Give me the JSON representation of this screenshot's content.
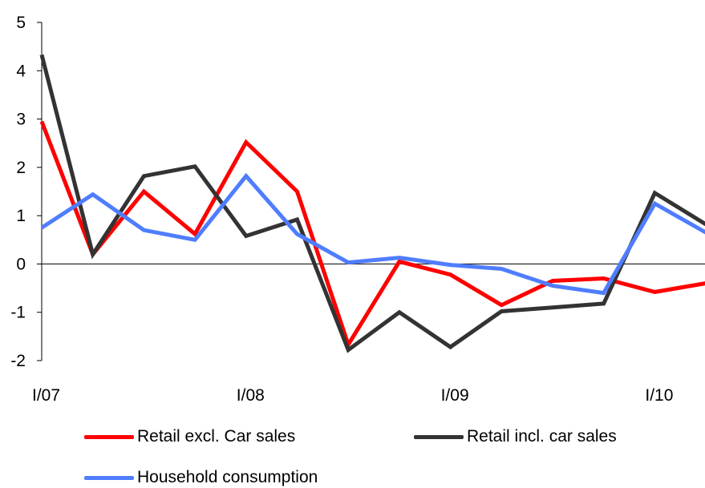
{
  "chart_data": {
    "type": "line",
    "title": "",
    "xlabel": "",
    "ylabel": "",
    "x": [
      "I/07",
      "II/07",
      "III/07",
      "IV/07",
      "I/08",
      "II/08",
      "III/08",
      "IV/08",
      "I/09",
      "II/09",
      "III/09",
      "IV/09",
      "I/10",
      "II/10"
    ],
    "x_tick_labels": [
      "I/07",
      "I/08",
      "I/09",
      "I/10"
    ],
    "y_ticks": [
      -2,
      -1,
      0,
      1,
      2,
      3,
      4,
      5
    ],
    "ylim": [
      -2,
      5
    ],
    "zero_line": true,
    "grid": false,
    "legend_position": "bottom",
    "series": [
      {
        "name": "Retail excl. Car sales",
        "color": "#ff0000",
        "values": [
          2.95,
          0.2,
          1.5,
          0.62,
          2.52,
          1.5,
          -1.67,
          0.05,
          -0.22,
          -0.85,
          -0.35,
          -0.3,
          -0.58,
          -0.4
        ]
      },
      {
        "name": "Retail incl. car sales",
        "color": "#333333",
        "values": [
          4.33,
          0.2,
          1.82,
          2.02,
          0.58,
          0.92,
          -1.78,
          -1.0,
          -1.72,
          -0.98,
          -0.9,
          -0.82,
          1.47,
          0.82
        ]
      },
      {
        "name": "Household consumption",
        "color": "#4f7dff",
        "values": [
          0.75,
          1.44,
          0.7,
          0.5,
          1.82,
          0.62,
          0.03,
          0.13,
          -0.02,
          -0.1,
          -0.45,
          -0.6,
          1.25,
          0.65
        ]
      }
    ]
  }
}
